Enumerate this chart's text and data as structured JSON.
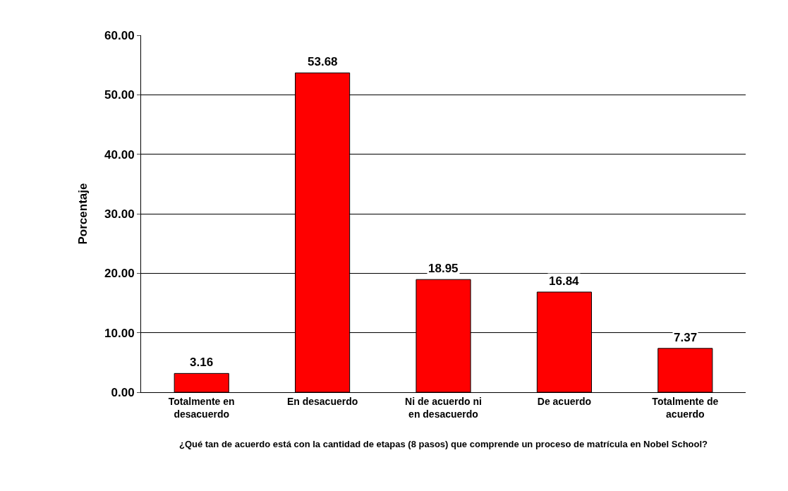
{
  "chart_data": {
    "type": "bar",
    "xlabel": "¿Qué tan de acuerdo está con la cantidad de etapas (8 pasos) que comprende un proceso de matrícula en Nobel School?",
    "ylabel": "Porcentaje",
    "categories": [
      "Totalmente en desacuerdo",
      "En desacuerdo",
      "Ni de acuerdo ni en desacuerdo",
      "De acuerdo",
      "Totalmente de acuerdo"
    ],
    "values": [
      3.16,
      53.68,
      18.95,
      16.84,
      7.37
    ],
    "color": "#ff0000",
    "ylim": [
      0,
      60
    ],
    "yticks": [
      {
        "value": 0,
        "label": "0.00"
      },
      {
        "value": 10,
        "label": "10.00"
      },
      {
        "value": 20,
        "label": "20.00"
      },
      {
        "value": 30,
        "label": "30.00"
      },
      {
        "value": 40,
        "label": "40.00"
      },
      {
        "value": 50,
        "label": "50.00"
      },
      {
        "value": 60,
        "label": "60.00"
      }
    ],
    "grid": "y",
    "data_labels": true
  }
}
